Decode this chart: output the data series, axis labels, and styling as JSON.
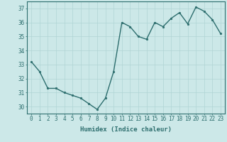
{
  "x": [
    0,
    1,
    2,
    3,
    4,
    5,
    6,
    7,
    8,
    9,
    10,
    11,
    12,
    13,
    14,
    15,
    16,
    17,
    18,
    19,
    20,
    21,
    22,
    23
  ],
  "y": [
    33.2,
    32.5,
    31.3,
    31.3,
    31.0,
    30.8,
    30.6,
    30.2,
    29.8,
    30.6,
    32.5,
    36.0,
    35.7,
    35.0,
    34.8,
    36.0,
    35.7,
    36.3,
    36.7,
    35.9,
    37.1,
    36.8,
    36.2,
    35.2
  ],
  "line_color": "#2d6e6e",
  "marker": "o",
  "marker_size": 1.8,
  "bg_color": "#cce8e8",
  "grid_color": "#b0d4d4",
  "axis_color": "#2d6e6e",
  "tick_color": "#2d6e6e",
  "xlabel": "Humidex (Indice chaleur)",
  "ylim": [
    29.5,
    37.5
  ],
  "yticks": [
    30,
    31,
    32,
    33,
    34,
    35,
    36,
    37
  ],
  "xticks": [
    0,
    1,
    2,
    3,
    4,
    5,
    6,
    7,
    8,
    9,
    10,
    11,
    12,
    13,
    14,
    15,
    16,
    17,
    18,
    19,
    20,
    21,
    22,
    23
  ],
  "xlabel_fontsize": 6.5,
  "tick_fontsize": 5.5,
  "linewidth": 1.0
}
